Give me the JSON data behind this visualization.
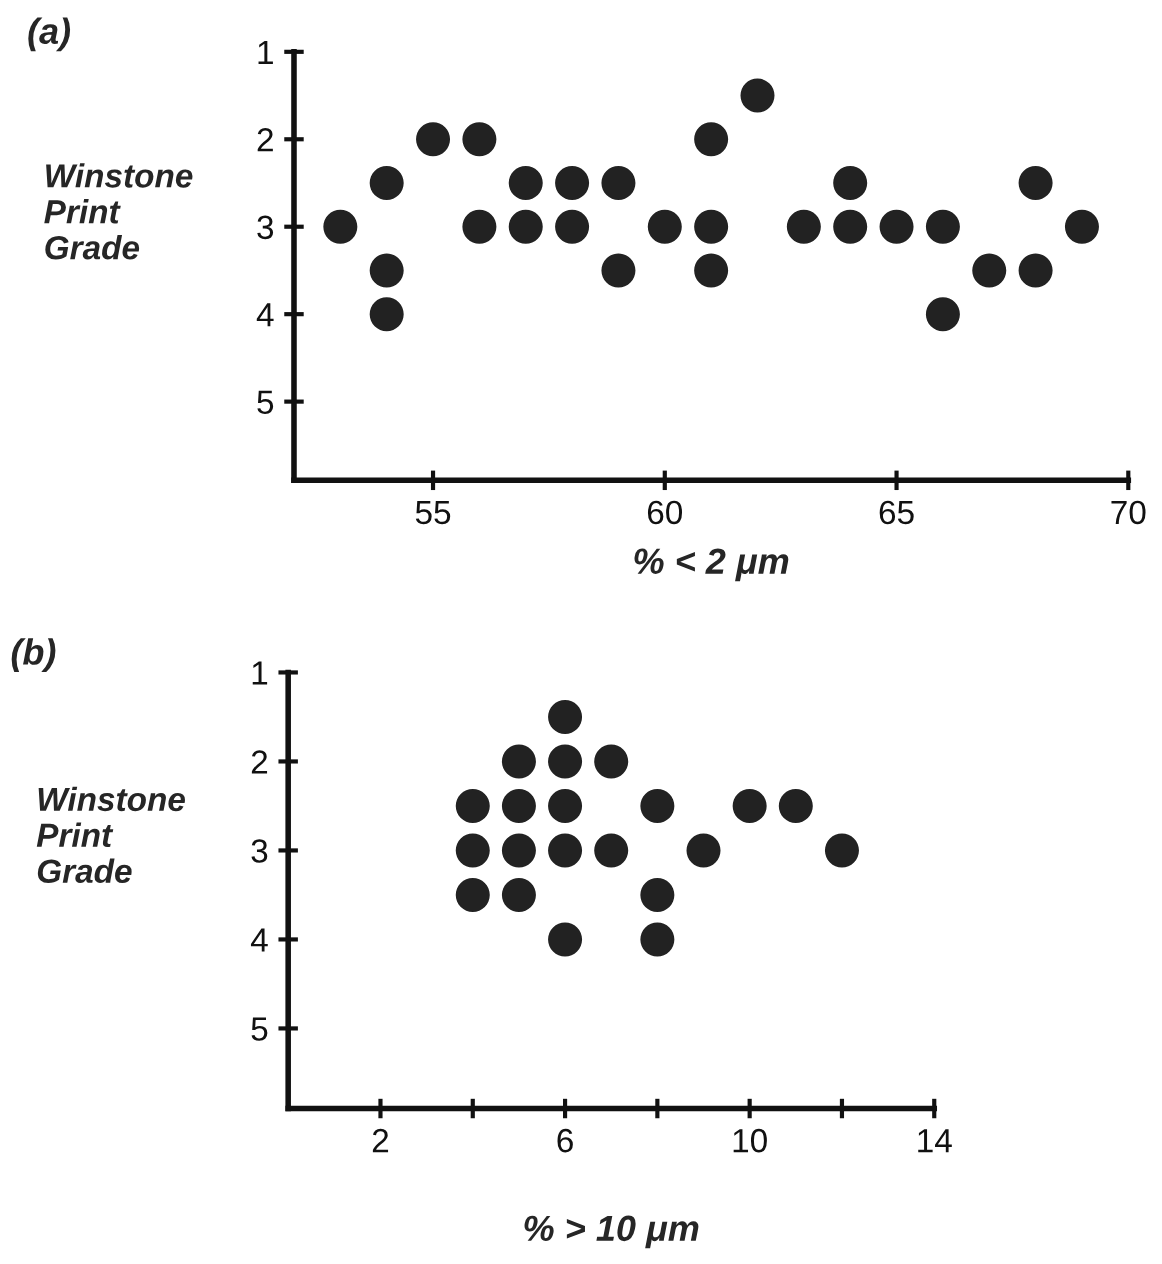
{
  "chart_data": [
    {
      "type": "scatter",
      "title": "(a)",
      "xlabel": "% < 2 μm",
      "ylabel": "Winstone\nPrint\nGrade",
      "color": "#222222",
      "marker": "circle",
      "grid": false,
      "x": [
        53,
        54,
        54,
        54,
        55,
        56,
        56,
        57,
        57,
        58,
        58,
        59,
        59,
        60,
        61,
        61,
        61,
        62,
        63,
        64,
        64,
        65,
        66,
        66,
        67,
        68,
        68,
        69
      ],
      "values": [
        3,
        2.5,
        3.5,
        4,
        2,
        2,
        3,
        2.5,
        3,
        2.5,
        3,
        2.5,
        3.5,
        3,
        2,
        3,
        3.5,
        1.5,
        3,
        2.5,
        3,
        3,
        3,
        4,
        3.5,
        2.5,
        3.5,
        3
      ],
      "xlim": [
        52,
        70
      ],
      "xticks": [
        55,
        60,
        65,
        70
      ],
      "ylim": [
        5.9,
        1
      ],
      "yticks": [
        1,
        2,
        3,
        4,
        5
      ]
    },
    {
      "type": "scatter",
      "title": "(b)",
      "xlabel": "% > 10 μm",
      "ylabel": "Winstone\nPrint\nGrade",
      "color": "#222222",
      "marker": "circle",
      "grid": false,
      "x": [
        6,
        5,
        6,
        7,
        4,
        5,
        6,
        8,
        10,
        11,
        4,
        5,
        6,
        7,
        9,
        12,
        4,
        5,
        8,
        6,
        8
      ],
      "values": [
        1.5,
        2,
        2,
        2,
        2.5,
        2.5,
        2.5,
        2.5,
        2.5,
        2.5,
        3,
        3,
        3,
        3,
        3,
        3,
        3.5,
        3.5,
        3.5,
        4,
        4
      ],
      "xlim": [
        0,
        14
      ],
      "xticks": [
        2,
        {
          "value": 4,
          "label": null
        },
        6,
        {
          "value": 8,
          "label": null
        },
        10,
        {
          "value": 12,
          "label": null
        },
        14
      ],
      "ylim": [
        5.9,
        1
      ],
      "yticks": [
        1,
        2,
        3,
        4,
        5
      ]
    }
  ]
}
